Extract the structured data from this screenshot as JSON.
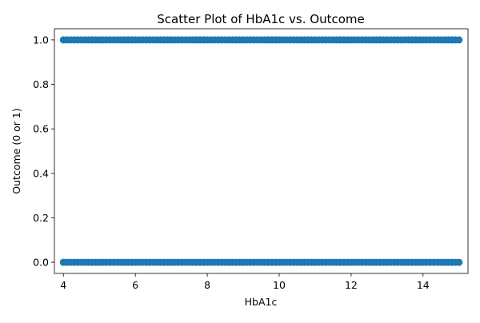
{
  "chart_data": {
    "type": "scatter",
    "title": "Scatter Plot of HbA1c vs. Outcome",
    "xlabel": "HbA1c",
    "ylabel": "Outcome (0 or 1)",
    "xlim": [
      3.75,
      15.25
    ],
    "ylim": [
      -0.05,
      1.05
    ],
    "xticks": [
      4,
      6,
      8,
      10,
      12,
      14
    ],
    "yticks": [
      0.0,
      0.2,
      0.4,
      0.6,
      0.8,
      1.0
    ],
    "xtick_labels": [
      "4",
      "6",
      "8",
      "10",
      "12",
      "14"
    ],
    "ytick_labels": [
      "0.0",
      "0.2",
      "0.4",
      "0.6",
      "0.8",
      "1.0"
    ],
    "grid": false,
    "series": [
      {
        "color": "#1f77b4",
        "x": [
          4.0,
          4.1,
          4.2,
          4.3,
          4.4,
          4.5,
          4.6,
          4.7,
          4.8,
          4.9,
          5.0,
          5.1,
          5.2,
          5.3,
          5.4,
          5.5,
          5.6,
          5.7,
          5.8,
          5.9,
          6.0,
          6.1,
          6.2,
          6.3,
          6.4,
          6.5,
          6.6,
          6.7,
          6.8,
          6.9,
          7.0,
          7.1,
          7.2,
          7.3,
          7.4,
          7.5,
          7.6,
          7.7,
          7.8,
          7.9,
          8.0,
          8.1,
          8.2,
          8.3,
          8.4,
          8.5,
          8.6,
          8.7,
          8.8,
          8.9,
          9.0,
          9.1,
          9.2,
          9.3,
          9.4,
          9.5,
          9.6,
          9.7,
          9.8,
          9.9,
          10.0,
          10.1,
          10.2,
          10.3,
          10.4,
          10.5,
          10.6,
          10.7,
          10.8,
          10.9,
          11.0,
          11.1,
          11.2,
          11.3,
          11.4,
          11.5,
          11.6,
          11.7,
          11.8,
          11.9,
          12.0,
          12.1,
          12.2,
          12.3,
          12.4,
          12.5,
          12.6,
          12.7,
          12.8,
          12.9,
          13.0,
          13.1,
          13.2,
          13.3,
          13.4,
          13.5,
          13.6,
          13.7,
          13.8,
          13.9,
          14.0,
          14.1,
          14.2,
          14.3,
          14.4,
          14.5,
          14.6,
          14.7,
          14.8,
          14.9,
          15.0,
          4.0,
          4.1,
          4.2,
          4.3,
          4.4,
          4.5,
          4.6,
          4.7,
          4.8,
          4.9,
          5.0,
          5.1,
          5.2,
          5.3,
          5.4,
          5.5,
          5.6,
          5.7,
          5.8,
          5.9,
          6.0,
          6.1,
          6.2,
          6.3,
          6.4,
          6.5,
          6.6,
          6.7,
          6.8,
          6.9,
          7.0,
          7.1,
          7.2,
          7.3,
          7.4,
          7.5,
          7.6,
          7.7,
          7.8,
          7.9,
          8.0,
          8.1,
          8.2,
          8.3,
          8.4,
          8.5,
          8.6,
          8.7,
          8.8,
          8.9,
          9.0,
          9.1,
          9.2,
          9.3,
          9.4,
          9.5,
          9.6,
          9.7,
          9.8,
          9.9,
          10.0,
          10.1,
          10.2,
          10.3,
          10.4,
          10.5,
          10.6,
          10.7,
          10.8,
          10.9,
          11.0,
          11.1,
          11.2,
          11.3,
          11.4,
          11.5,
          11.6,
          11.7,
          11.8,
          11.9,
          12.0,
          12.1,
          12.2,
          12.3,
          12.4,
          12.5,
          12.6,
          12.7,
          12.8,
          12.9,
          13.0,
          13.1,
          13.2,
          13.3,
          13.4,
          13.5,
          13.6,
          13.7,
          13.8,
          13.9,
          14.0,
          14.1,
          14.2,
          14.3,
          14.4,
          14.5,
          14.6,
          14.7,
          14.8,
          14.9,
          15.0
        ],
        "y": [
          1,
          1,
          1,
          1,
          1,
          1,
          1,
          1,
          1,
          1,
          1,
          1,
          1,
          1,
          1,
          1,
          1,
          1,
          1,
          1,
          1,
          1,
          1,
          1,
          1,
          1,
          1,
          1,
          1,
          1,
          1,
          1,
          1,
          1,
          1,
          1,
          1,
          1,
          1,
          1,
          1,
          1,
          1,
          1,
          1,
          1,
          1,
          1,
          1,
          1,
          1,
          1,
          1,
          1,
          1,
          1,
          1,
          1,
          1,
          1,
          1,
          1,
          1,
          1,
          1,
          1,
          1,
          1,
          1,
          1,
          1,
          1,
          1,
          1,
          1,
          1,
          1,
          1,
          1,
          1,
          1,
          1,
          1,
          1,
          1,
          1,
          1,
          1,
          1,
          1,
          1,
          1,
          1,
          1,
          1,
          1,
          1,
          1,
          1,
          1,
          1,
          1,
          1,
          1,
          1,
          1,
          1,
          1,
          1,
          1,
          1,
          0,
          0,
          0,
          0,
          0,
          0,
          0,
          0,
          0,
          0,
          0,
          0,
          0,
          0,
          0,
          0,
          0,
          0,
          0,
          0,
          0,
          0,
          0,
          0,
          0,
          0,
          0,
          0,
          0,
          0,
          0,
          0,
          0,
          0,
          0,
          0,
          0,
          0,
          0,
          0,
          0,
          0,
          0,
          0,
          0,
          0,
          0,
          0,
          0,
          0,
          0,
          0,
          0,
          0,
          0,
          0,
          0,
          0,
          0,
          0,
          0,
          0,
          0,
          0,
          0,
          0,
          0,
          0,
          0,
          0,
          0,
          0,
          0,
          0,
          0,
          0,
          0,
          0,
          0,
          0,
          0,
          0,
          0,
          0,
          0,
          0,
          0,
          0,
          0,
          0,
          0,
          0,
          0,
          0,
          0,
          0,
          0,
          0,
          0,
          0,
          0,
          0,
          0,
          0,
          0,
          0,
          0,
          0,
          0,
          0,
          0
        ]
      }
    ]
  }
}
